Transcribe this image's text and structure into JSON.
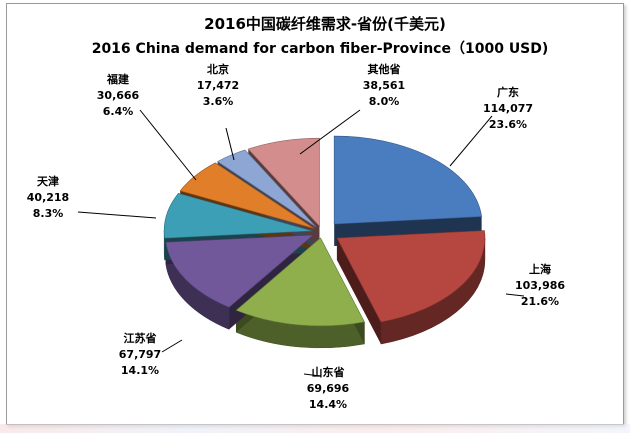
{
  "chart_data": {
    "type": "pie",
    "title": "2016中国碳纤维需求-省份(千美元)",
    "subtitle": "2016 China demand for carbon fiber-Province（1000 USD)",
    "slices": [
      {
        "name": "广东",
        "value_text": "114,077",
        "value": 114077,
        "pct_text": "23.6%",
        "pct": 23.6,
        "color": "#4a7cc0"
      },
      {
        "name": "上海",
        "value_text": "103,986",
        "value": 103986,
        "pct_text": "21.6%",
        "pct": 21.6,
        "color": "#b54640"
      },
      {
        "name": "山东省",
        "value_text": "69,696",
        "value": 69696,
        "pct_text": "14.4%",
        "pct": 14.4,
        "color": "#8eaf4b"
      },
      {
        "name": "江苏省",
        "value_text": "67,797",
        "value": 67797,
        "pct_text": "14.1%",
        "pct": 14.1,
        "color": "#70589a"
      },
      {
        "name": "天津",
        "value_text": "40,218",
        "value": 40218,
        "pct_text": "8.3%",
        "pct": 8.3,
        "color": "#3d9fb5"
      },
      {
        "name": "福建",
        "value_text": "30,666",
        "value": 30666,
        "pct_text": "6.4%",
        "pct": 6.4,
        "color": "#e07e2a"
      },
      {
        "name": "北京",
        "value_text": "17,472",
        "value": 17472,
        "pct_text": "3.6%",
        "pct": 3.6,
        "color": "#8ea6d4"
      },
      {
        "name": "其他省",
        "value_text": "38,561",
        "value": 38561,
        "pct_text": "8.0%",
        "pct": 8.0,
        "color": "#d48d8d"
      }
    ]
  }
}
